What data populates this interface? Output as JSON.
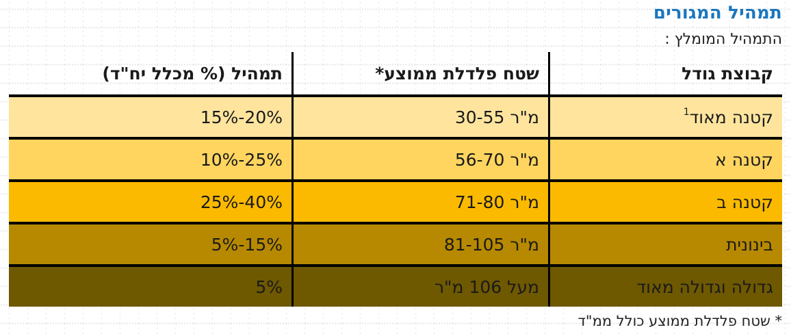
{
  "page": {
    "title": "תמהיל המגורים",
    "subtitle": "התמהיל המומלץ :",
    "footnote": "* שטח פלדלת ממוצע כולל ממ\"ד"
  },
  "colors": {
    "title_blue": "#1B76BE",
    "border_black": "#000000",
    "row_colors": [
      "#FFE49E",
      "#FFD55F",
      "#FBBA00",
      "#B78900",
      "#6E5800"
    ]
  },
  "table": {
    "headers": {
      "size_group": "קבוצת גודל",
      "avg_area": "שטח פלדלת ממוצע*",
      "mix": "תמהיל (% מכלל יח\"ד)"
    },
    "rows": [
      {
        "size_group": "קטנה מאוד",
        "size_group_sup": "1",
        "avg_area": "30-55 מ\"ר",
        "mix": "15%-20%",
        "color": "#FFE49E"
      },
      {
        "size_group": "קטנה א",
        "avg_area": "56-70 מ\"ר",
        "mix": "10%-25%",
        "color": "#FFD55F"
      },
      {
        "size_group": "קטנה ב",
        "avg_area": "71-80 מ\"ר",
        "mix": "25%-40%",
        "color": "#FBBA00"
      },
      {
        "size_group": "בינונית",
        "avg_area": "81-105 מ\"ר",
        "mix": "5%-15%",
        "color": "#B78900"
      },
      {
        "size_group": "גדולה וגדולה מאוד",
        "avg_area": "מעל 106 מ\"ר",
        "mix": "5%",
        "color": "#6E5800"
      }
    ]
  }
}
